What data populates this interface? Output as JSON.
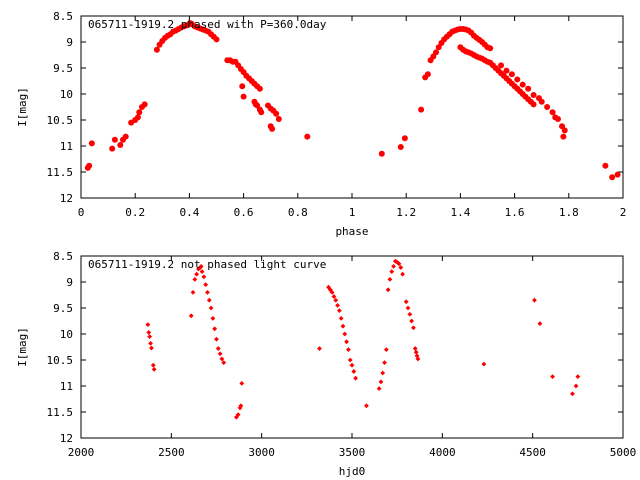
{
  "colors": {
    "points": "#ff0000",
    "axes": "#000000",
    "background": "#ffffff"
  },
  "chart_data": [
    {
      "type": "scatter",
      "title": "065711-1919.2 phased with P=360.0day",
      "xlabel": "phase",
      "ylabel": "I[mag]",
      "xlim": [
        0,
        2
      ],
      "ylim": [
        12,
        8.5
      ],
      "y_inverted": true,
      "grid": false,
      "legend": "none",
      "x_ticks": [
        "0",
        "0.2",
        "0.4",
        "0.6",
        "0.8",
        "1",
        "1.2",
        "1.4",
        "1.6",
        "1.8",
        "2"
      ],
      "y_ticks": [
        "8.5",
        "9",
        "9.5",
        "10",
        "10.5",
        "11",
        "11.5",
        "12"
      ],
      "marker": "filled-circle-large",
      "points": [
        [
          0.025,
          11.42
        ],
        [
          0.03,
          11.38
        ],
        [
          0.04,
          10.95
        ],
        [
          0.115,
          11.05
        ],
        [
          0.125,
          10.88
        ],
        [
          0.145,
          10.98
        ],
        [
          0.155,
          10.88
        ],
        [
          0.165,
          10.82
        ],
        [
          0.185,
          10.55
        ],
        [
          0.2,
          10.5
        ],
        [
          0.21,
          10.45
        ],
        [
          0.215,
          10.35
        ],
        [
          0.225,
          10.25
        ],
        [
          0.235,
          10.2
        ],
        [
          0.28,
          9.15
        ],
        [
          0.29,
          9.05
        ],
        [
          0.3,
          8.98
        ],
        [
          0.31,
          8.92
        ],
        [
          0.32,
          8.88
        ],
        [
          0.33,
          8.85
        ],
        [
          0.34,
          8.8
        ],
        [
          0.35,
          8.78
        ],
        [
          0.36,
          8.75
        ],
        [
          0.37,
          8.72
        ],
        [
          0.38,
          8.7
        ],
        [
          0.39,
          8.68
        ],
        [
          0.4,
          8.65
        ],
        [
          0.405,
          8.64
        ],
        [
          0.41,
          8.66
        ],
        [
          0.42,
          8.7
        ],
        [
          0.43,
          8.72
        ],
        [
          0.44,
          8.74
        ],
        [
          0.45,
          8.76
        ],
        [
          0.46,
          8.78
        ],
        [
          0.47,
          8.8
        ],
        [
          0.48,
          8.85
        ],
        [
          0.49,
          8.9
        ],
        [
          0.5,
          8.95
        ],
        [
          0.54,
          9.35
        ],
        [
          0.55,
          9.35
        ],
        [
          0.56,
          9.38
        ],
        [
          0.57,
          9.38
        ],
        [
          0.58,
          9.45
        ],
        [
          0.59,
          9.52
        ],
        [
          0.6,
          9.58
        ],
        [
          0.61,
          9.65
        ],
        [
          0.62,
          9.7
        ],
        [
          0.63,
          9.75
        ],
        [
          0.64,
          9.8
        ],
        [
          0.65,
          9.85
        ],
        [
          0.66,
          9.9
        ],
        [
          0.595,
          9.85
        ],
        [
          0.6,
          10.05
        ],
        [
          0.64,
          10.15
        ],
        [
          0.645,
          10.2
        ],
        [
          0.65,
          10.22
        ],
        [
          0.66,
          10.3
        ],
        [
          0.665,
          10.35
        ],
        [
          0.69,
          10.22
        ],
        [
          0.7,
          10.28
        ],
        [
          0.71,
          10.32
        ],
        [
          0.72,
          10.38
        ],
        [
          0.73,
          10.48
        ],
        [
          0.7,
          10.62
        ],
        [
          0.705,
          10.67
        ],
        [
          0.835,
          10.82
        ],
        [
          1.11,
          11.15
        ],
        [
          1.18,
          11.02
        ],
        [
          1.195,
          10.85
        ],
        [
          1.255,
          10.3
        ],
        [
          1.27,
          9.68
        ],
        [
          1.28,
          9.62
        ],
        [
          1.29,
          9.35
        ],
        [
          1.3,
          9.28
        ],
        [
          1.31,
          9.2
        ],
        [
          1.32,
          9.1
        ],
        [
          1.33,
          9.02
        ],
        [
          1.34,
          8.95
        ],
        [
          1.35,
          8.9
        ],
        [
          1.36,
          8.85
        ],
        [
          1.37,
          8.8
        ],
        [
          1.38,
          8.78
        ],
        [
          1.39,
          8.76
        ],
        [
          1.4,
          8.75
        ],
        [
          1.41,
          8.75
        ],
        [
          1.42,
          8.76
        ],
        [
          1.43,
          8.78
        ],
        [
          1.44,
          8.82
        ],
        [
          1.45,
          8.88
        ],
        [
          1.46,
          8.92
        ],
        [
          1.47,
          8.96
        ],
        [
          1.48,
          9.0
        ],
        [
          1.49,
          9.05
        ],
        [
          1.5,
          9.1
        ],
        [
          1.51,
          9.12
        ],
        [
          1.4,
          9.1
        ],
        [
          1.41,
          9.15
        ],
        [
          1.42,
          9.18
        ],
        [
          1.43,
          9.2
        ],
        [
          1.44,
          9.22
        ],
        [
          1.45,
          9.25
        ],
        [
          1.46,
          9.28
        ],
        [
          1.47,
          9.3
        ],
        [
          1.48,
          9.32
        ],
        [
          1.49,
          9.35
        ],
        [
          1.5,
          9.38
        ],
        [
          1.51,
          9.4
        ],
        [
          1.52,
          9.45
        ],
        [
          1.53,
          9.5
        ],
        [
          1.54,
          9.55
        ],
        [
          1.55,
          9.6
        ],
        [
          1.56,
          9.65
        ],
        [
          1.57,
          9.7
        ],
        [
          1.58,
          9.75
        ],
        [
          1.59,
          9.8
        ],
        [
          1.6,
          9.85
        ],
        [
          1.61,
          9.9
        ],
        [
          1.62,
          9.95
        ],
        [
          1.63,
          10.0
        ],
        [
          1.64,
          10.05
        ],
        [
          1.65,
          10.1
        ],
        [
          1.66,
          10.15
        ],
        [
          1.67,
          10.2
        ],
        [
          1.55,
          9.45
        ],
        [
          1.57,
          9.55
        ],
        [
          1.59,
          9.62
        ],
        [
          1.61,
          9.72
        ],
        [
          1.63,
          9.82
        ],
        [
          1.65,
          9.9
        ],
        [
          1.67,
          10.02
        ],
        [
          1.69,
          10.08
        ],
        [
          1.7,
          10.15
        ],
        [
          1.72,
          10.25
        ],
        [
          1.74,
          10.35
        ],
        [
          1.75,
          10.45
        ],
        [
          1.76,
          10.48
        ],
        [
          1.775,
          10.62
        ],
        [
          1.78,
          10.82
        ],
        [
          1.785,
          10.7
        ],
        [
          1.935,
          11.38
        ],
        [
          1.96,
          11.6
        ],
        [
          1.98,
          11.55
        ]
      ]
    },
    {
      "type": "scatter",
      "title": "065711-1919.2 not phased light curve",
      "xlabel": "hjd0",
      "ylabel": "I[mag]",
      "xlim": [
        2000,
        5000
      ],
      "ylim": [
        12,
        8.5
      ],
      "y_inverted": true,
      "grid": false,
      "legend": "none",
      "x_ticks": [
        "2000",
        "2500",
        "3000",
        "3500",
        "4000",
        "4500",
        "5000"
      ],
      "y_ticks": [
        "8.5",
        "9",
        "9.5",
        "10",
        "10.5",
        "11",
        "11.5",
        "12"
      ],
      "marker": "filled-diamond-small",
      "points": [
        [
          2370,
          9.82
        ],
        [
          2375,
          9.97
        ],
        [
          2380,
          10.05
        ],
        [
          2385,
          10.18
        ],
        [
          2390,
          10.27
        ],
        [
          2400,
          10.6
        ],
        [
          2405,
          10.68
        ],
        [
          2610,
          9.65
        ],
        [
          2620,
          9.2
        ],
        [
          2630,
          8.95
        ],
        [
          2640,
          8.85
        ],
        [
          2650,
          8.75
        ],
        [
          2660,
          8.72
        ],
        [
          2665,
          8.7
        ],
        [
          2670,
          8.8
        ],
        [
          2680,
          8.9
        ],
        [
          2690,
          9.05
        ],
        [
          2700,
          9.2
        ],
        [
          2710,
          9.35
        ],
        [
          2720,
          9.5
        ],
        [
          2730,
          9.7
        ],
        [
          2740,
          9.9
        ],
        [
          2750,
          10.1
        ],
        [
          2760,
          10.28
        ],
        [
          2770,
          10.38
        ],
        [
          2780,
          10.48
        ],
        [
          2790,
          10.55
        ],
        [
          2860,
          11.6
        ],
        [
          2870,
          11.55
        ],
        [
          2880,
          11.42
        ],
        [
          2885,
          11.38
        ],
        [
          2890,
          10.95
        ],
        [
          3320,
          10.28
        ],
        [
          3370,
          9.1
        ],
        [
          3380,
          9.15
        ],
        [
          3390,
          9.2
        ],
        [
          3400,
          9.28
        ],
        [
          3410,
          9.35
        ],
        [
          3420,
          9.45
        ],
        [
          3430,
          9.55
        ],
        [
          3440,
          9.7
        ],
        [
          3450,
          9.85
        ],
        [
          3460,
          10.0
        ],
        [
          3470,
          10.15
        ],
        [
          3480,
          10.3
        ],
        [
          3490,
          10.5
        ],
        [
          3500,
          10.6
        ],
        [
          3510,
          10.72
        ],
        [
          3520,
          10.85
        ],
        [
          3580,
          11.38
        ],
        [
          3650,
          11.05
        ],
        [
          3660,
          10.92
        ],
        [
          3670,
          10.75
        ],
        [
          3680,
          10.55
        ],
        [
          3690,
          10.3
        ],
        [
          3700,
          9.15
        ],
        [
          3710,
          8.95
        ],
        [
          3720,
          8.8
        ],
        [
          3730,
          8.7
        ],
        [
          3740,
          8.6
        ],
        [
          3750,
          8.62
        ],
        [
          3760,
          8.65
        ],
        [
          3770,
          8.72
        ],
        [
          3780,
          8.85
        ],
        [
          3800,
          9.38
        ],
        [
          3810,
          9.5
        ],
        [
          3820,
          9.62
        ],
        [
          3830,
          9.75
        ],
        [
          3840,
          9.88
        ],
        [
          3850,
          10.28
        ],
        [
          3855,
          10.35
        ],
        [
          3860,
          10.42
        ],
        [
          3865,
          10.48
        ],
        [
          4230,
          10.58
        ],
        [
          4510,
          9.35
        ],
        [
          4540,
          9.8
        ],
        [
          4610,
          10.82
        ],
        [
          4720,
          11.15
        ],
        [
          4740,
          11.0
        ],
        [
          4750,
          10.82
        ]
      ]
    }
  ]
}
